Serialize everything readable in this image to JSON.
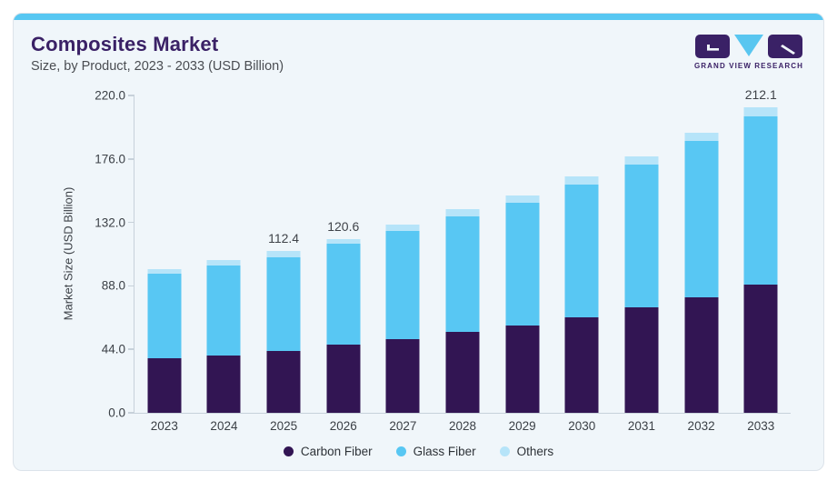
{
  "header": {
    "title": "Composites Market",
    "subtitle": "Size, by Product, 2023 - 2033 (USD Billion)",
    "logo_text": "GRAND VIEW RESEARCH"
  },
  "colors": {
    "accent_bar": "#57C7F2",
    "card_background": "#F0F6FA",
    "title_purple": "#3A2166",
    "logo_purple": "#3A2166",
    "logo_triangle_blue": "#59C6F0",
    "axis_line": "#C7D1DA",
    "carbon_fiber": "#321553",
    "glass_fiber": "#58C7F3",
    "others": "#B6E4F9"
  },
  "chart_data": {
    "type": "bar",
    "stacked": true,
    "title": "Composites Market Size, by Product, 2023 - 2033 (USD Billion)",
    "categories": [
      "2023",
      "2024",
      "2025",
      "2026",
      "2027",
      "2028",
      "2029",
      "2030",
      "2031",
      "2032",
      "2033"
    ],
    "series": [
      {
        "name": "Carbon Fiber",
        "color": "#321553",
        "values": [
          38.0,
          40.0,
          42.8,
          47.2,
          51.3,
          56.4,
          60.7,
          66.0,
          72.9,
          79.8,
          88.6
        ]
      },
      {
        "name": "Glass Fiber",
        "color": "#58C7F3",
        "values": [
          58.3,
          62.0,
          65.3,
          70.0,
          74.8,
          79.9,
          85.1,
          92.5,
          99.4,
          108.6,
          116.8
        ]
      },
      {
        "name": "Others",
        "color": "#B6E4F9",
        "values": [
          3.1,
          3.6,
          4.3,
          3.4,
          4.4,
          4.7,
          4.7,
          5.5,
          5.5,
          5.7,
          6.7
        ]
      }
    ],
    "totals": [
      99.4,
      105.6,
      112.4,
      120.6,
      130.5,
      141.0,
      150.5,
      164.0,
      177.8,
      194.1,
      212.1
    ],
    "bar_labels": [
      null,
      null,
      "112.4",
      "120.6",
      null,
      null,
      null,
      null,
      null,
      null,
      "212.1"
    ],
    "xlabel": "",
    "ylabel": "Market Size (USD Billion)",
    "yticks": [
      0,
      44,
      88,
      132,
      176,
      220
    ],
    "ytick_labels": [
      "0.0",
      "44.0",
      "88.0",
      "132.0",
      "176.0",
      "220.0"
    ],
    "ylim": [
      0,
      220
    ],
    "grid": false,
    "legend_position": "bottom"
  }
}
